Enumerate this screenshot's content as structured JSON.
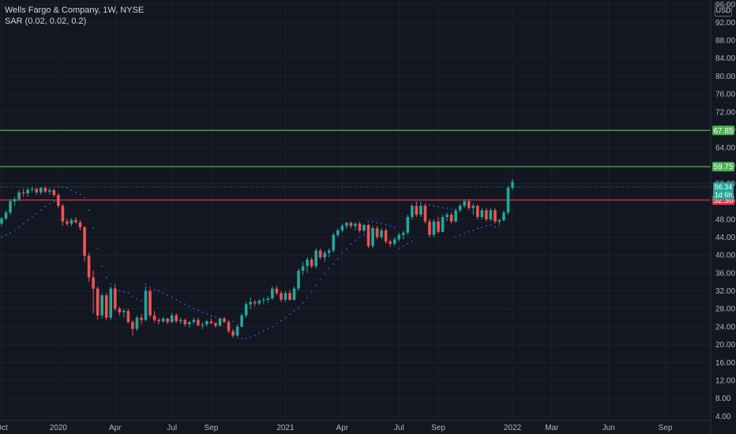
{
  "legend": {
    "symbol": "Wells Fargo & Company, 1W, NYSE",
    "indicator": "SAR (0.02, 0.02, 0.2)"
  },
  "currency": "USD",
  "current_price": {
    "value": "56.34",
    "countdown": "1d 6h"
  },
  "colors": {
    "background": "#131722",
    "up": "#26a69a",
    "down": "#ef5350",
    "sar": "#2962ff",
    "resistance": "#4caf50",
    "support": "#f23645",
    "grid": "#1e222d",
    "text": "#b2b5be"
  },
  "chart_data": {
    "type": "candlestick",
    "y_axis": {
      "range": [
        3.0,
        97.0
      ],
      "ticks": [
        "4.00",
        "8.00",
        "12.00",
        "16.00",
        "20.00",
        "24.00",
        "28.00",
        "32.00",
        "36.00",
        "40.00",
        "44.00",
        "48.00",
        "52.00",
        "56.00",
        "60.00",
        "64.00",
        "68.00",
        "72.00",
        "76.00",
        "80.00",
        "84.00",
        "88.00",
        "92.00",
        "96.00"
      ]
    },
    "x_axis": {
      "labels": [
        {
          "label": "Oct",
          "week": 0
        },
        {
          "label": "2020",
          "week": 13
        },
        {
          "label": "Apr",
          "week": 26
        },
        {
          "label": "Jul",
          "week": 39
        },
        {
          "label": "Sep",
          "week": 48
        },
        {
          "label": "2021",
          "week": 65
        },
        {
          "label": "Apr",
          "week": 78
        },
        {
          "label": "Jul",
          "week": 91
        },
        {
          "label": "Sep",
          "week": 100
        },
        {
          "label": "2022",
          "week": 117
        },
        {
          "label": "Mar",
          "week": 126
        },
        {
          "label": "Jun",
          "week": 139
        },
        {
          "label": "Sep",
          "week": 152
        }
      ]
    },
    "levels": [
      {
        "value": 67.85,
        "label": "67.85",
        "color": "#4caf50"
      },
      {
        "value": 59.75,
        "label": "59.75",
        "color": "#4caf50"
      },
      {
        "value": 52.3,
        "label": "52.30",
        "color": "#f23645"
      }
    ],
    "candles": [
      [
        47.0,
        48.5,
        46.5,
        48.2
      ],
      [
        48.2,
        50.0,
        47.8,
        49.5
      ],
      [
        49.5,
        52.5,
        49.0,
        52.0
      ],
      [
        52.0,
        53.0,
        51.0,
        52.5
      ],
      [
        52.5,
        54.5,
        52.0,
        54.0
      ],
      [
        54.0,
        54.8,
        53.0,
        53.8
      ],
      [
        53.8,
        55.0,
        53.0,
        54.6
      ],
      [
        54.6,
        55.3,
        54.0,
        54.8
      ],
      [
        54.8,
        55.0,
        53.5,
        54.0
      ],
      [
        54.0,
        55.2,
        53.5,
        55.0
      ],
      [
        55.0,
        55.4,
        53.8,
        54.2
      ],
      [
        54.2,
        55.0,
        53.5,
        54.5
      ],
      [
        54.5,
        54.9,
        53.0,
        53.4
      ],
      [
        53.4,
        53.8,
        50.5,
        51.0
      ],
      [
        51.0,
        51.5,
        46.5,
        47.5
      ],
      [
        47.5,
        48.2,
        46.5,
        47.0
      ],
      [
        47.0,
        48.3,
        46.5,
        47.8
      ],
      [
        47.8,
        48.5,
        47.0,
        47.3
      ],
      [
        47.3,
        47.8,
        45.5,
        46.2
      ],
      [
        46.2,
        46.5,
        38.5,
        39.8
      ],
      [
        39.8,
        40.5,
        34.0,
        35.0
      ],
      [
        35.0,
        36.5,
        27.0,
        32.5
      ],
      [
        32.5,
        33.0,
        25.5,
        26.5
      ],
      [
        26.5,
        31.5,
        25.8,
        31.0
      ],
      [
        31.0,
        31.5,
        25.5,
        26.0
      ],
      [
        26.0,
        33.0,
        25.5,
        32.5
      ],
      [
        32.5,
        33.5,
        27.5,
        28.0
      ],
      [
        28.0,
        28.5,
        26.5,
        27.2
      ],
      [
        27.2,
        28.0,
        26.0,
        27.5
      ],
      [
        27.5,
        28.0,
        24.8,
        25.0
      ],
      [
        25.0,
        25.5,
        22.0,
        23.5
      ],
      [
        23.5,
        26.5,
        23.0,
        26.0
      ],
      [
        26.0,
        26.8,
        24.5,
        25.5
      ],
      [
        25.5,
        33.0,
        25.2,
        32.0
      ],
      [
        32.0,
        32.5,
        26.0,
        26.5
      ],
      [
        26.5,
        27.5,
        25.0,
        25.5
      ],
      [
        25.5,
        26.0,
        24.5,
        25.2
      ],
      [
        25.2,
        26.2,
        24.8,
        25.8
      ],
      [
        25.8,
        26.0,
        24.5,
        25.0
      ],
      [
        25.0,
        27.0,
        24.8,
        26.5
      ],
      [
        26.5,
        27.0,
        24.8,
        25.2
      ],
      [
        25.2,
        26.0,
        24.5,
        25.5
      ],
      [
        25.5,
        25.8,
        24.0,
        24.5
      ],
      [
        24.5,
        25.3,
        23.8,
        25.0
      ],
      [
        25.0,
        26.0,
        24.5,
        25.5
      ],
      [
        25.5,
        26.0,
        24.0,
        24.3
      ],
      [
        24.3,
        25.0,
        23.5,
        24.5
      ],
      [
        24.5,
        25.5,
        24.0,
        25.2
      ],
      [
        25.2,
        25.8,
        24.5,
        24.8
      ],
      [
        24.8,
        25.0,
        23.8,
        24.2
      ],
      [
        24.2,
        26.0,
        24.0,
        25.8
      ],
      [
        25.8,
        26.2,
        24.8,
        25.0
      ],
      [
        25.0,
        25.3,
        22.5,
        23.0
      ],
      [
        23.0,
        23.5,
        21.5,
        22.0
      ],
      [
        22.0,
        24.5,
        21.8,
        24.0
      ],
      [
        24.0,
        27.0,
        23.8,
        26.5
      ],
      [
        26.5,
        29.5,
        26.0,
        29.0
      ],
      [
        29.0,
        30.5,
        28.0,
        29.5
      ],
      [
        29.5,
        30.0,
        28.5,
        29.2
      ],
      [
        29.2,
        30.2,
        28.8,
        29.8
      ],
      [
        29.8,
        30.5,
        29.0,
        30.0
      ],
      [
        30.0,
        30.8,
        29.3,
        30.3
      ],
      [
        30.3,
        33.0,
        30.0,
        32.5
      ],
      [
        32.5,
        33.2,
        31.0,
        31.5
      ],
      [
        31.5,
        32.0,
        29.5,
        30.0
      ],
      [
        30.0,
        32.0,
        29.5,
        31.5
      ],
      [
        31.5,
        32.2,
        29.8,
        30.0
      ],
      [
        30.0,
        33.0,
        29.8,
        32.5
      ],
      [
        32.5,
        37.0,
        32.0,
        36.5
      ],
      [
        36.5,
        38.5,
        35.5,
        37.5
      ],
      [
        37.5,
        39.5,
        36.0,
        39.0
      ],
      [
        39.0,
        39.5,
        37.0,
        37.5
      ],
      [
        37.5,
        41.5,
        37.0,
        41.0
      ],
      [
        41.0,
        41.5,
        39.0,
        39.5
      ],
      [
        39.5,
        41.0,
        38.5,
        40.5
      ],
      [
        40.5,
        41.5,
        39.5,
        41.0
      ],
      [
        41.0,
        45.0,
        40.5,
        44.5
      ],
      [
        44.5,
        46.0,
        44.0,
        45.5
      ],
      [
        45.5,
        47.0,
        45.0,
        46.5
      ],
      [
        46.5,
        47.5,
        45.8,
        47.2
      ],
      [
        47.2,
        47.5,
        46.0,
        46.5
      ],
      [
        46.5,
        47.3,
        45.5,
        47.0
      ],
      [
        47.0,
        47.5,
        45.0,
        45.5
      ],
      [
        45.5,
        47.0,
        45.0,
        46.7
      ],
      [
        46.7,
        47.0,
        41.5,
        42.0
      ],
      [
        42.0,
        46.5,
        41.5,
        46.0
      ],
      [
        46.0,
        46.5,
        43.5,
        44.0
      ],
      [
        44.0,
        46.0,
        43.5,
        45.5
      ],
      [
        45.5,
        46.0,
        42.5,
        43.0
      ],
      [
        43.0,
        43.5,
        41.8,
        42.5
      ],
      [
        42.5,
        44.0,
        42.0,
        43.5
      ],
      [
        43.5,
        45.0,
        43.0,
        44.5
      ],
      [
        44.5,
        45.5,
        43.5,
        45.0
      ],
      [
        45.0,
        49.0,
        44.5,
        48.5
      ],
      [
        48.5,
        51.5,
        48.0,
        51.0
      ],
      [
        51.0,
        51.8,
        48.5,
        49.0
      ],
      [
        49.0,
        51.5,
        48.5,
        51.0
      ],
      [
        51.0,
        51.5,
        47.0,
        47.5
      ],
      [
        47.5,
        48.0,
        44.0,
        44.5
      ],
      [
        44.5,
        48.0,
        44.0,
        47.5
      ],
      [
        47.5,
        48.5,
        44.8,
        45.2
      ],
      [
        45.2,
        49.0,
        45.0,
        48.5
      ],
      [
        48.5,
        49.5,
        47.5,
        49.0
      ],
      [
        49.0,
        49.5,
        47.0,
        47.5
      ],
      [
        47.5,
        50.5,
        47.2,
        50.0
      ],
      [
        50.0,
        51.5,
        49.5,
        51.0
      ],
      [
        51.0,
        52.5,
        50.5,
        52.0
      ],
      [
        52.0,
        52.5,
        50.0,
        50.5
      ],
      [
        50.5,
        51.5,
        49.0,
        51.0
      ],
      [
        51.0,
        51.3,
        48.0,
        48.5
      ],
      [
        48.5,
        50.5,
        48.0,
        50.0
      ],
      [
        50.0,
        50.5,
        47.5,
        48.0
      ],
      [
        48.0,
        50.5,
        47.5,
        50.0
      ],
      [
        50.0,
        50.5,
        47.0,
        47.5
      ],
      [
        47.5,
        48.0,
        46.8,
        47.8
      ],
      [
        47.8,
        50.0,
        47.5,
        49.5
      ],
      [
        49.5,
        55.5,
        49.0,
        55.0
      ],
      [
        55.0,
        57.0,
        54.5,
        56.34
      ]
    ],
    "sar": [
      [
        0,
        44.0
      ],
      [
        1,
        44.5
      ],
      [
        2,
        45.0
      ],
      [
        3,
        45.5
      ],
      [
        4,
        46.2
      ],
      [
        5,
        47.0
      ],
      [
        6,
        47.8
      ],
      [
        7,
        48.5
      ],
      [
        8,
        49.2
      ],
      [
        9,
        50.0
      ],
      [
        10,
        50.8
      ],
      [
        11,
        51.5
      ],
      [
        12,
        52.0
      ],
      [
        13,
        55.3
      ],
      [
        14,
        55.2
      ],
      [
        15,
        55.0
      ],
      [
        16,
        54.5
      ],
      [
        17,
        54.0
      ],
      [
        18,
        53.5
      ],
      [
        19,
        52.8
      ],
      [
        20,
        50.0
      ],
      [
        21,
        46.0
      ],
      [
        22,
        41.5
      ],
      [
        23,
        37.5
      ],
      [
        24,
        35.0
      ],
      [
        25,
        33.5
      ],
      [
        26,
        32.5
      ],
      [
        27,
        32.0
      ],
      [
        28,
        31.8
      ],
      [
        29,
        31.5
      ],
      [
        30,
        30.8
      ],
      [
        31,
        30.2
      ],
      [
        32,
        29.8
      ],
      [
        33,
        33.5
      ],
      [
        34,
        32.8
      ],
      [
        35,
        32.3
      ],
      [
        36,
        32.0
      ],
      [
        37,
        31.5
      ],
      [
        38,
        31.0
      ],
      [
        39,
        30.5
      ],
      [
        40,
        30.0
      ],
      [
        41,
        29.5
      ],
      [
        42,
        29.0
      ],
      [
        43,
        28.5
      ],
      [
        44,
        28.0
      ],
      [
        45,
        27.6
      ],
      [
        46,
        27.2
      ],
      [
        47,
        26.8
      ],
      [
        48,
        26.4
      ],
      [
        49,
        26.1
      ],
      [
        50,
        25.8
      ],
      [
        51,
        25.5
      ],
      [
        52,
        25.3
      ],
      [
        53,
        25.2
      ],
      [
        54,
        21.5
      ],
      [
        55,
        21.3
      ],
      [
        56,
        21.3
      ],
      [
        57,
        21.6
      ],
      [
        58,
        22.0
      ],
      [
        59,
        22.5
      ],
      [
        60,
        23.0
      ],
      [
        61,
        23.5
      ],
      [
        62,
        24.0
      ],
      [
        63,
        24.6
      ],
      [
        64,
        25.3
      ],
      [
        65,
        26.0
      ],
      [
        66,
        26.8
      ],
      [
        67,
        27.5
      ],
      [
        68,
        28.3
      ],
      [
        69,
        29.3
      ],
      [
        70,
        30.5
      ],
      [
        71,
        31.8
      ],
      [
        72,
        33.2
      ],
      [
        73,
        34.5
      ],
      [
        74,
        35.8
      ],
      [
        75,
        37.0
      ],
      [
        76,
        38.0
      ],
      [
        77,
        39.2
      ],
      [
        78,
        40.5
      ],
      [
        79,
        41.5
      ],
      [
        80,
        42.5
      ],
      [
        81,
        43.3
      ],
      [
        82,
        44.0
      ],
      [
        83,
        44.5
      ],
      [
        84,
        47.5
      ],
      [
        85,
        47.4
      ],
      [
        86,
        47.2
      ],
      [
        87,
        47.0
      ],
      [
        88,
        46.8
      ],
      [
        89,
        46.5
      ],
      [
        90,
        46.2
      ],
      [
        91,
        41.5
      ],
      [
        92,
        42.0
      ],
      [
        93,
        42.5
      ],
      [
        94,
        43.0
      ],
      [
        95,
        51.8
      ],
      [
        96,
        51.6
      ],
      [
        97,
        51.4
      ],
      [
        98,
        51.2
      ],
      [
        99,
        51.0
      ],
      [
        100,
        50.8
      ],
      [
        101,
        50.6
      ],
      [
        102,
        50.4
      ],
      [
        103,
        50.2
      ],
      [
        104,
        44.0
      ],
      [
        105,
        44.4
      ],
      [
        106,
        44.8
      ],
      [
        107,
        45.2
      ],
      [
        108,
        45.5
      ],
      [
        109,
        45.9
      ],
      [
        110,
        46.2
      ],
      [
        111,
        46.5
      ],
      [
        112,
        46.7
      ],
      [
        113,
        46.3
      ],
      [
        114,
        46.5
      ]
    ]
  }
}
